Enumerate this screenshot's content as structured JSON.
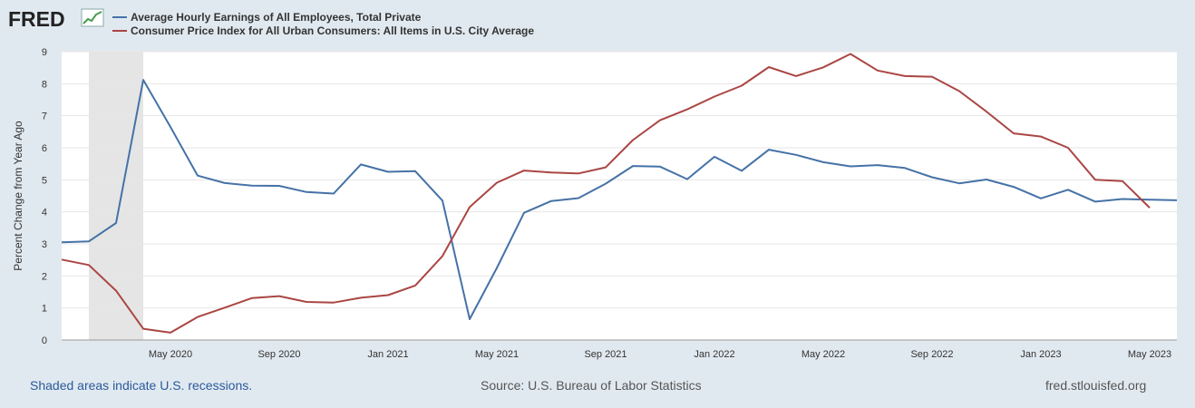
{
  "brand": {
    "logo_text": "FRED"
  },
  "colors": {
    "series1": "#4572a7",
    "series2": "#aa4643",
    "recession": "#e5e5e5"
  },
  "chart_data": {
    "type": "line",
    "ylabel": "Percent Change from Year Ago",
    "ylim": [
      0,
      9
    ],
    "yticks": [
      "0",
      "1",
      "2",
      "3",
      "4",
      "5",
      "6",
      "7",
      "8",
      "9"
    ],
    "x_start": "2020-01",
    "x_end": "2023-06",
    "x_tick_labels": [
      "May 2020",
      "Sep 2020",
      "Jan 2021",
      "May 2021",
      "Sep 2021",
      "Jan 2022",
      "May 2022",
      "Sep 2022",
      "Jan 2023",
      "May 2023"
    ],
    "recession": {
      "start": "2020-02",
      "end": "2020-04",
      "label": "Shaded areas indicate U.S. recessions."
    },
    "series": [
      {
        "name": "Average Hourly Earnings of All Employees, Total Private",
        "color": "#4572a7",
        "x": [
          "2020-01",
          "2020-02",
          "2020-03",
          "2020-04",
          "2020-05",
          "2020-06",
          "2020-07",
          "2020-08",
          "2020-09",
          "2020-10",
          "2020-11",
          "2020-12",
          "2021-01",
          "2021-02",
          "2021-03",
          "2021-04",
          "2021-05",
          "2021-06",
          "2021-07",
          "2021-08",
          "2021-09",
          "2021-10",
          "2021-11",
          "2021-12",
          "2022-01",
          "2022-02",
          "2022-03",
          "2022-04",
          "2022-05",
          "2022-06",
          "2022-07",
          "2022-08",
          "2022-09",
          "2022-10",
          "2022-11",
          "2022-12",
          "2023-01",
          "2023-02",
          "2023-03",
          "2023-04",
          "2023-05",
          "2023-06"
        ],
        "values": [
          3.05,
          3.08,
          3.65,
          8.12,
          6.65,
          5.13,
          4.9,
          4.82,
          4.81,
          4.62,
          4.57,
          5.48,
          5.25,
          5.27,
          4.35,
          0.65,
          2.25,
          3.97,
          4.34,
          4.43,
          4.88,
          5.43,
          5.41,
          5.02,
          5.72,
          5.28,
          5.94,
          5.78,
          5.55,
          5.42,
          5.46,
          5.37,
          5.08,
          4.89,
          5.01,
          4.78,
          4.42,
          4.69,
          4.32,
          4.4,
          4.38,
          4.36
        ]
      },
      {
        "name": "Consumer Price Index for All Urban Consumers: All Items in U.S. City Average",
        "color": "#aa4643",
        "x": [
          "2020-01",
          "2020-02",
          "2020-03",
          "2020-04",
          "2020-05",
          "2020-06",
          "2020-07",
          "2020-08",
          "2020-09",
          "2020-10",
          "2020-11",
          "2020-12",
          "2021-01",
          "2021-02",
          "2021-03",
          "2021-04",
          "2021-05",
          "2021-06",
          "2021-07",
          "2021-08",
          "2021-09",
          "2021-10",
          "2021-11",
          "2021-12",
          "2022-01",
          "2022-02",
          "2022-03",
          "2022-04",
          "2022-05",
          "2022-06",
          "2022-07",
          "2022-08",
          "2022-09",
          "2022-10",
          "2022-11",
          "2022-12",
          "2023-01",
          "2023-02",
          "2023-03",
          "2023-04",
          "2023-05"
        ],
        "values": [
          2.51,
          2.34,
          1.54,
          0.35,
          0.23,
          0.72,
          1.01,
          1.31,
          1.37,
          1.19,
          1.17,
          1.32,
          1.4,
          1.7,
          2.62,
          4.15,
          4.91,
          5.29,
          5.23,
          5.2,
          5.39,
          6.24,
          6.86,
          7.2,
          7.6,
          7.94,
          8.52,
          8.24,
          8.51,
          8.93,
          8.41,
          8.24,
          8.22,
          7.77,
          7.13,
          6.45,
          6.35,
          6.0,
          5.0,
          4.96,
          4.13
        ]
      }
    ],
    "source": "Source: U.S. Bureau of Labor Statistics",
    "site": "fred.stlouisfed.org"
  }
}
